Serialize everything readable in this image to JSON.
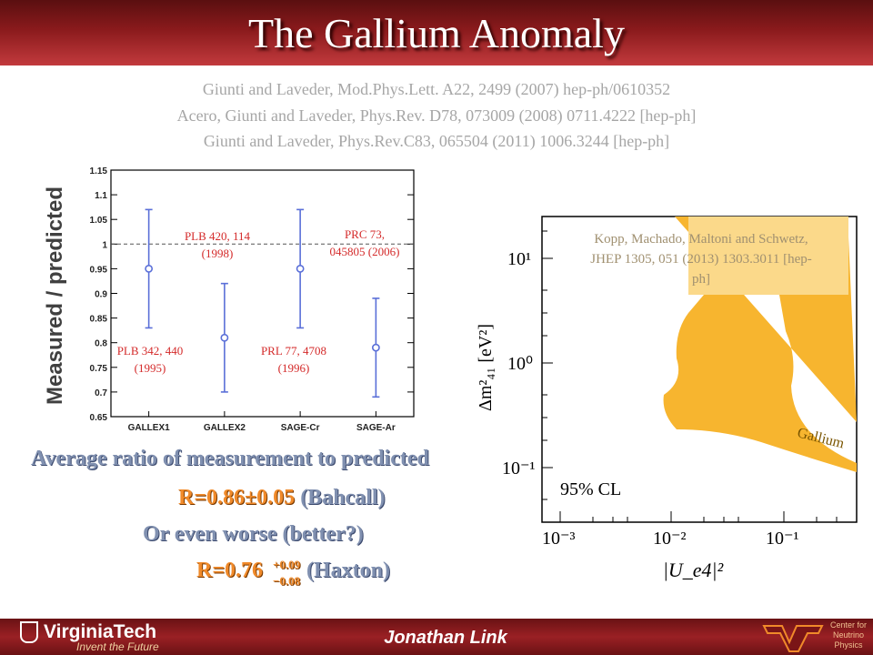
{
  "slide": {
    "title": "The Gallium Anomaly",
    "references": [
      "Giunti and Laveder, Mod.Phys.Lett. A22, 2499 (2007) hep-ph/0610352",
      "Acero, Giunti and Laveder, Phys.Rev. D78, 073009 (2008) 0711.4222 [hep-ph]",
      "Giunti and Laveder, Phys.Rev.C83, 065504 (2011) 1006.3244 [hep-ph]"
    ],
    "average_text": "Average ratio of measurement to predicted",
    "result1_value": "R=0.86±0.05",
    "result1_source": "(Bahcall)",
    "worse_text": "Or even worse (better?)",
    "result2_value": "R=0.76",
    "result2_plus": "+0.09",
    "result2_minus": "−0.08",
    "result2_source": "(Haxton)",
    "kopp_citation": "Kopp, Machado, Maltoni and Schwetz, JHEP 1305, 051 (2013) 1303.3011 [hep-ph]"
  },
  "footer": {
    "university": "VirginiaTech",
    "tagline": "Invent the Future",
    "presenter": "Jonathan Link",
    "center_lines": [
      "Center for",
      "Neutrino",
      "Physics"
    ],
    "colors": {
      "maroon": "#8a1a1c",
      "orange": "#f08a2a"
    }
  },
  "chart_data": [
    {
      "type": "scatter",
      "ylabel": "Measured / predicted",
      "categories": [
        "GALLEX1",
        "GALLEX2",
        "SAGE-Cr",
        "SAGE-Ar"
      ],
      "values": [
        0.95,
        0.81,
        0.95,
        0.79
      ],
      "err_low": [
        0.83,
        0.7,
        0.83,
        0.69
      ],
      "err_high": [
        1.07,
        0.92,
        1.07,
        0.89
      ],
      "ylim": [
        0.65,
        1.15
      ],
      "yticks": [
        0.65,
        0.7,
        0.75,
        0.8,
        0.85,
        0.9,
        0.95,
        1,
        1.05,
        1.1,
        1.15
      ],
      "reference_line": 1.0,
      "annotations": [
        {
          "category": "GALLEX1",
          "lines": [
            "PLB 342, 440",
            "(1995)"
          ]
        },
        {
          "category": "GALLEX2",
          "lines": [
            "PLB 420, 114",
            "(1998)"
          ]
        },
        {
          "category": "SAGE-Cr",
          "lines": [
            "PRL 77, 4708",
            "(1996)"
          ]
        },
        {
          "category": "SAGE-Ar",
          "lines": [
            "PRC 73,",
            "045805 (2006)"
          ]
        }
      ],
      "marker_color": "#5a6fd8",
      "annotation_color": "#d42a2a"
    },
    {
      "type": "area",
      "xlabel": "|U_e4|²",
      "ylabel": "Δm²₄₁ [eV²]",
      "x_scale": "log",
      "y_scale": "log",
      "xlim": [
        0.001,
        0.3
      ],
      "ylim": [
        0.05,
        30
      ],
      "xticks": [
        "10⁻³",
        "10⁻²",
        "10⁻¹"
      ],
      "yticks": [
        "10¹",
        "10⁰",
        "10⁻¹"
      ],
      "series": [
        {
          "name": "Gallium",
          "color": "#f7b52f"
        }
      ],
      "cl_label": "95% CL"
    }
  ]
}
